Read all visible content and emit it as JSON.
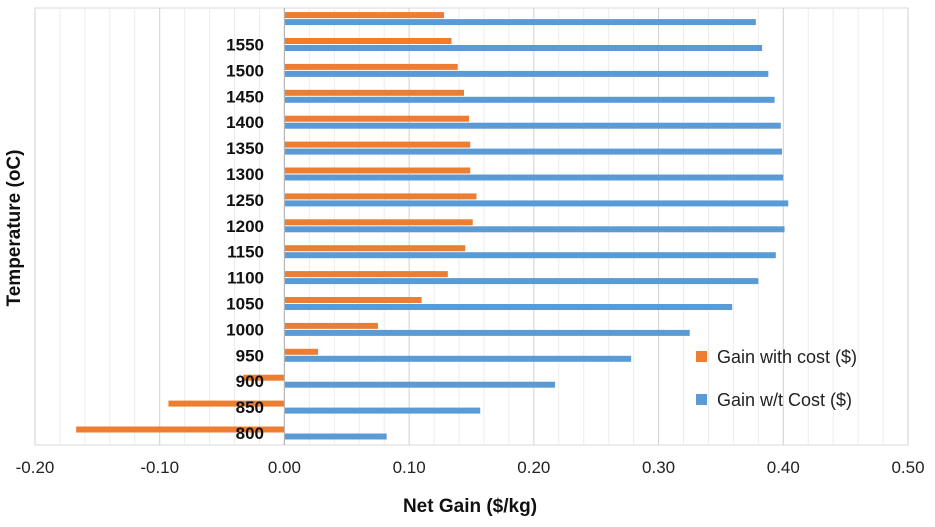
{
  "chart_data": {
    "type": "bar",
    "orientation": "horizontal",
    "title": "",
    "xlabel": "Net Gain ($/kg)",
    "ylabel": "Temperature (oC)",
    "xlim": [
      -0.2,
      0.5
    ],
    "x_ticks": [
      "-0.20",
      "-0.10",
      "0.00",
      "0.10",
      "0.20",
      "0.30",
      "0.40",
      "0.50"
    ],
    "grid": "vertical",
    "legend_position": "bottom-right",
    "categories": [
      "800",
      "850",
      "900",
      "950",
      "1000",
      "1050",
      "1100",
      "1150",
      "1200",
      "1250",
      "1300",
      "1350",
      "1400",
      "1450",
      "1500",
      "1550",
      ""
    ],
    "series": [
      {
        "name": "Gain with cost ($)",
        "color": "#ED7D31",
        "values": [
          -0.167,
          -0.093,
          -0.033,
          0.027,
          0.075,
          0.11,
          0.131,
          0.145,
          0.151,
          0.154,
          0.149,
          0.149,
          0.148,
          0.144,
          0.139,
          0.134,
          0.128
        ]
      },
      {
        "name": "Gain w/t Cost ($)",
        "color": "#5B9BD5",
        "values": [
          0.082,
          0.157,
          0.217,
          0.278,
          0.325,
          0.359,
          0.38,
          0.394,
          0.401,
          0.404,
          0.4,
          0.399,
          0.398,
          0.393,
          0.388,
          0.383,
          0.378
        ]
      }
    ]
  }
}
